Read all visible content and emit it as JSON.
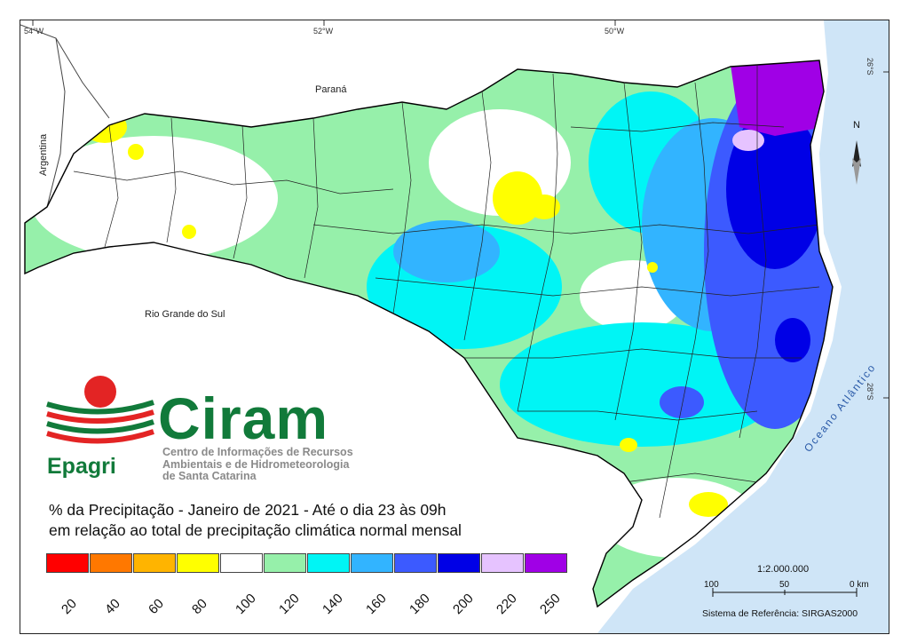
{
  "coords": {
    "lon1": "54°W",
    "lon2": "52°W",
    "lon3": "50°W",
    "lat1": "26°S",
    "lat2": "28°S"
  },
  "regions": {
    "parana": "Paraná",
    "argentina": "Argentina",
    "rio_grande": "Rio Grande do Sul",
    "ocean": "Oceano Atlântico"
  },
  "logo": {
    "name": "Ciram",
    "epagri": "Epagri",
    "subtitle1": "Centro de Informações de Recursos",
    "subtitle2": "Ambientais e de Hidrometeorologia",
    "subtitle3": "de Santa Catarina"
  },
  "title": {
    "line1": "% da Precipitação - Janeiro de 2021 - Até o dia 23 às 09h",
    "line2": "em relação ao total de precipitação climática normal mensal"
  },
  "legend": {
    "colors": [
      "#ff0000",
      "#ff7800",
      "#ffb400",
      "#ffff00",
      "#ffffff",
      "#96f0aa",
      "#00f5f5",
      "#32b4ff",
      "#3c5aff",
      "#0000e6",
      "#e6c3ff",
      "#a000e6"
    ],
    "labels": [
      "20",
      "40",
      "60",
      "80",
      "100",
      "120",
      "140",
      "160",
      "180",
      "200",
      "220",
      "250"
    ]
  },
  "compass": {
    "north": "N"
  },
  "scale": {
    "ratio": "1:2.000.000",
    "t100": "100",
    "t50": "50",
    "t0": "0 km",
    "reference": "Sistema de Referência: SIRGAS2000"
  }
}
